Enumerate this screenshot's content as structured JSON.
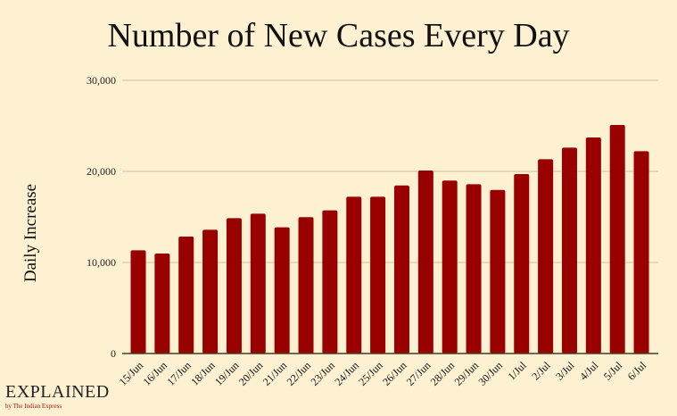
{
  "chart_data": {
    "type": "bar",
    "title": "Number of New Cases Every Day",
    "xlabel": "",
    "ylabel": "Daily Increase",
    "ylim": [
      0,
      30000
    ],
    "yticks": [
      0,
      10000,
      20000,
      30000
    ],
    "ytick_labels": [
      "0",
      "10,000",
      "20,000",
      "30,000"
    ],
    "grid": true,
    "categories": [
      "15/Jun",
      "16/Jun",
      "17/Jun",
      "18/Jun",
      "19/Jun",
      "20/Jun",
      "21/Jun",
      "22/Jun",
      "23/Jun",
      "24/Jun",
      "25/Jun",
      "26/Jun",
      "27/Jun",
      "28/Jun",
      "29/Jun",
      "30/Jun",
      "1/Jul",
      "2/Jul",
      "3/Jul",
      "4/Jul",
      "5/Jul",
      "6/Jul"
    ],
    "values": [
      11340,
      10980,
      12840,
      13590,
      14870,
      15360,
      13860,
      14970,
      15720,
      17220,
      17220,
      18460,
      20100,
      18990,
      18590,
      17970,
      19710,
      21340,
      22610,
      23730,
      25100,
      22220
    ],
    "bar_color": "#990000"
  },
  "logo": {
    "main": "EXPLAINED",
    "sub": "by The Indian Express"
  }
}
